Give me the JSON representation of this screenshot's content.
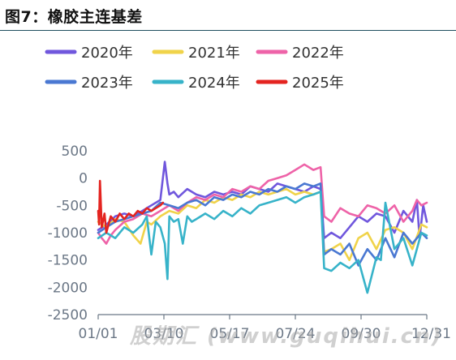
{
  "title": "图7：橡胶主连基差",
  "watermark": "股期汇 (www.guqihui.cn)",
  "chart_data": {
    "type": "line",
    "title": "",
    "xlabel": "",
    "ylabel": "",
    "x_tick_labels": [
      "01/01",
      "03/10",
      "05/17",
      "07/24",
      "09/30",
      "12/31"
    ],
    "y_ticks": [
      500,
      0,
      -500,
      -1000,
      -1500,
      -2000,
      -2500
    ],
    "ylim": [
      -2500,
      500
    ],
    "xlim_day_of_year": [
      1,
      366
    ],
    "legend_position": "top",
    "grid": false,
    "series": [
      {
        "name": "2020年",
        "color": "#7057dd",
        "x": [
          1,
          10,
          20,
          30,
          40,
          50,
          60,
          70,
          75,
          78,
          80,
          85,
          90,
          100,
          110,
          120,
          130,
          140,
          150,
          160,
          170,
          180,
          190,
          200,
          210,
          220,
          230,
          240,
          248,
          252,
          260,
          270,
          280,
          290,
          300,
          310,
          320,
          330,
          340,
          350,
          355,
          358,
          362,
          366
        ],
        "y": [
          -950,
          -850,
          -700,
          -650,
          -700,
          -600,
          -500,
          -400,
          300,
          -100,
          -300,
          -250,
          -350,
          -200,
          -300,
          -350,
          -250,
          -300,
          -250,
          -300,
          -150,
          -200,
          -250,
          -100,
          -150,
          -200,
          -250,
          -150,
          -200,
          -1100,
          -1000,
          -1100,
          -900,
          -700,
          -800,
          -650,
          -700,
          -1000,
          -600,
          -800,
          -400,
          -1100,
          -500,
          -800
        ]
      },
      {
        "name": "2021年",
        "color": "#f0d34a",
        "x": [
          1,
          10,
          20,
          30,
          40,
          48,
          55,
          60,
          70,
          80,
          90,
          100,
          110,
          120,
          130,
          140,
          150,
          160,
          170,
          180,
          190,
          200,
          210,
          220,
          230,
          240,
          248,
          252,
          260,
          270,
          280,
          290,
          300,
          310,
          320,
          330,
          340,
          350,
          360,
          366
        ],
        "y": [
          -800,
          -900,
          -750,
          -800,
          -1050,
          -1200,
          -800,
          -850,
          -700,
          -600,
          -650,
          -500,
          -550,
          -400,
          -450,
          -350,
          -400,
          -300,
          -350,
          -250,
          -300,
          -250,
          -200,
          -300,
          -250,
          -300,
          -250,
          -1350,
          -1300,
          -1200,
          -1500,
          -1100,
          -1000,
          -1300,
          -950,
          -900,
          -1000,
          -1300,
          -850,
          -900
        ]
      },
      {
        "name": "2022年",
        "color": "#ee63a8",
        "x": [
          1,
          5,
          10,
          15,
          20,
          30,
          40,
          50,
          60,
          70,
          80,
          90,
          100,
          110,
          120,
          130,
          140,
          150,
          160,
          170,
          180,
          190,
          200,
          210,
          220,
          230,
          240,
          248,
          252,
          260,
          270,
          280,
          290,
          300,
          310,
          320,
          330,
          340,
          350,
          355,
          360,
          366
        ],
        "y": [
          -1000,
          -1100,
          -1200,
          -1050,
          -950,
          -800,
          -750,
          -650,
          -700,
          -600,
          -500,
          -600,
          -450,
          -350,
          -400,
          -300,
          -350,
          -200,
          -250,
          -150,
          -200,
          -50,
          0,
          50,
          150,
          250,
          150,
          200,
          -700,
          -800,
          -550,
          -650,
          -700,
          -500,
          -550,
          -650,
          -500,
          -800,
          -600,
          -400,
          -500,
          -450
        ]
      },
      {
        "name": "2023年",
        "color": "#4a78d2",
        "x": [
          1,
          10,
          20,
          30,
          40,
          50,
          60,
          70,
          80,
          90,
          100,
          110,
          120,
          130,
          140,
          150,
          160,
          170,
          180,
          190,
          200,
          210,
          220,
          230,
          240,
          248,
          252,
          260,
          270,
          280,
          290,
          300,
          310,
          320,
          330,
          340,
          350,
          360,
          366
        ],
        "y": [
          -1000,
          -900,
          -800,
          -750,
          -700,
          -650,
          -600,
          -450,
          -500,
          -550,
          -450,
          -400,
          -500,
          -350,
          -400,
          -300,
          -350,
          -250,
          -300,
          -200,
          -250,
          -150,
          -200,
          -100,
          -150,
          -100,
          -1400,
          -1300,
          -1400,
          -1200,
          -1600,
          -1300,
          -1500,
          -1100,
          -1450,
          -1000,
          -1200,
          -1000,
          -1100
        ]
      },
      {
        "name": "2024年",
        "color": "#37b3c9",
        "x": [
          1,
          10,
          20,
          30,
          40,
          50,
          55,
          60,
          65,
          70,
          75,
          78,
          80,
          85,
          90,
          95,
          100,
          105,
          110,
          120,
          130,
          140,
          150,
          160,
          170,
          180,
          190,
          200,
          210,
          220,
          230,
          240,
          248,
          252,
          260,
          270,
          280,
          290,
          300,
          310,
          315,
          320,
          330,
          340,
          350,
          360,
          366
        ],
        "y": [
          -1100,
          -1000,
          -1100,
          -900,
          -1000,
          -850,
          -700,
          -1400,
          -800,
          -900,
          -1200,
          -1850,
          -700,
          -800,
          -750,
          -1200,
          -700,
          -800,
          -750,
          -650,
          -750,
          -600,
          -700,
          -550,
          -650,
          -500,
          -450,
          -400,
          -350,
          -450,
          -350,
          -300,
          -250,
          -1650,
          -1700,
          -1550,
          -1650,
          -1500,
          -2100,
          -1450,
          -1500,
          -450,
          -1300,
          -1100,
          -1600,
          -1000,
          -1050
        ]
      },
      {
        "name": "2025年",
        "color": "#e42420",
        "x": [
          1,
          2,
          3,
          5,
          8,
          10,
          15,
          20,
          25,
          30,
          35,
          40,
          45,
          50,
          55,
          60,
          65,
          70,
          73
        ],
        "y": [
          -600,
          -850,
          -50,
          -900,
          -650,
          -1000,
          -700,
          -800,
          -650,
          -750,
          -650,
          -700,
          -600,
          -650,
          -550,
          -600,
          -550,
          -500,
          -450
        ]
      }
    ]
  }
}
